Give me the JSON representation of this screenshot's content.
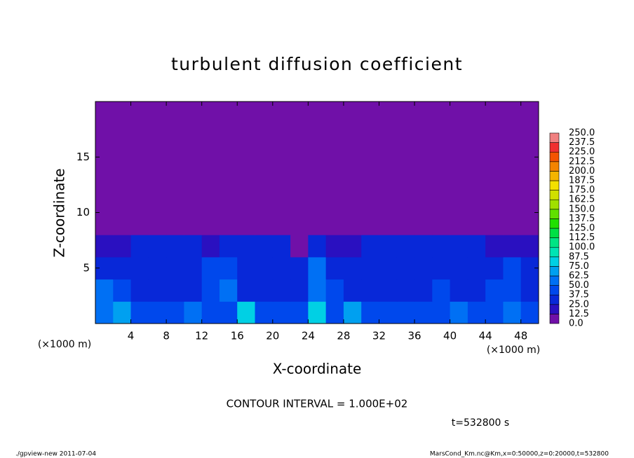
{
  "chart_data": {
    "type": "heatmap",
    "title": "turbulent diffusion coefficient",
    "xlabel": "X-coordinate",
    "ylabel": "Z-coordinate",
    "x_unit": "(×1000 m)",
    "y_unit": "(×1000 m)",
    "xlim": [
      0,
      50
    ],
    "ylim": [
      0,
      20
    ],
    "xticks": [
      4,
      8,
      12,
      16,
      20,
      24,
      28,
      32,
      36,
      40,
      44,
      48
    ],
    "yticks": [
      5,
      10,
      15
    ],
    "x_edges": [
      0,
      2,
      4,
      6,
      8,
      10,
      12,
      14,
      16,
      18,
      20,
      22,
      24,
      26,
      28,
      30,
      32,
      34,
      36,
      38,
      40,
      42,
      44,
      46,
      48,
      50
    ],
    "z_edges": [
      0,
      2,
      4,
      6,
      8,
      20
    ],
    "values": [
      [
        55,
        70,
        40,
        45,
        40,
        60,
        40,
        45,
        80,
        45,
        40,
        45,
        75,
        45,
        70,
        40,
        45,
        40,
        40,
        45,
        50,
        45,
        40,
        50,
        45
      ],
      [
        55,
        40,
        35,
        35,
        35,
        35,
        40,
        50,
        35,
        35,
        35,
        35,
        60,
        40,
        35,
        35,
        35,
        35,
        35,
        40,
        35,
        35,
        40,
        45,
        35
      ],
      [
        35,
        30,
        30,
        30,
        30,
        30,
        40,
        45,
        30,
        30,
        30,
        30,
        55,
        30,
        30,
        30,
        30,
        30,
        30,
        35,
        30,
        30,
        35,
        40,
        30
      ],
      [
        20,
        20,
        30,
        30,
        30,
        30,
        15,
        30,
        30,
        30,
        30,
        10,
        30,
        15,
        15,
        30,
        30,
        30,
        30,
        30,
        30,
        30,
        15,
        20,
        20
      ],
      [
        3,
        3,
        3,
        3,
        3,
        3,
        3,
        3,
        3,
        3,
        3,
        3,
        3,
        3,
        3,
        3,
        3,
        3,
        3,
        3,
        3,
        3,
        3,
        3,
        3
      ]
    ],
    "colorbar": {
      "levels": [
        {
          "value": 0,
          "label": "0.0"
        },
        {
          "value": 12.5,
          "label": "12.5"
        },
        {
          "value": 25,
          "label": "25.0"
        },
        {
          "value": 37.5,
          "label": "37.5"
        },
        {
          "value": 50,
          "label": "50.0"
        },
        {
          "value": 62.5,
          "label": "62.5"
        },
        {
          "value": 75,
          "label": "75.0"
        },
        {
          "value": 87.5,
          "label": "87.5"
        },
        {
          "value": 100,
          "label": "100.0"
        },
        {
          "value": 112.5,
          "label": "112.5"
        },
        {
          "value": 125,
          "label": "125.0"
        },
        {
          "value": 137.5,
          "label": "137.5"
        },
        {
          "value": 150,
          "label": "150.0"
        },
        {
          "value": 162.5,
          "label": "162.5"
        },
        {
          "value": 175,
          "label": "175.0"
        },
        {
          "value": 187.5,
          "label": "187.5"
        },
        {
          "value": 200,
          "label": "200.0"
        },
        {
          "value": 212.5,
          "label": "212.5"
        },
        {
          "value": 225,
          "label": "225.0"
        },
        {
          "value": 237.5,
          "label": "237.5"
        },
        {
          "value": 250,
          "label": "250.0"
        }
      ],
      "colors": [
        "#7010a8",
        "#2a10c0",
        "#0828d8",
        "#0048ec",
        "#0070f4",
        "#00a0f0",
        "#00d0e4",
        "#00e4b4",
        "#00e484",
        "#00e044",
        "#20e000",
        "#60e000",
        "#a0e000",
        "#d0e000",
        "#f4e000",
        "#f4b400",
        "#f48400",
        "#f45400",
        "#f03030",
        "#f08080"
      ]
    },
    "contour_interval": "CONTOUR INTERVAL = 1.000E+02",
    "time_label": "t=532800 s",
    "footer_left": "./gpview-new  2011-07-04",
    "footer_right": "MarsCond_Km.nc@Km,x=0:50000,z=0:20000,t=532800"
  }
}
